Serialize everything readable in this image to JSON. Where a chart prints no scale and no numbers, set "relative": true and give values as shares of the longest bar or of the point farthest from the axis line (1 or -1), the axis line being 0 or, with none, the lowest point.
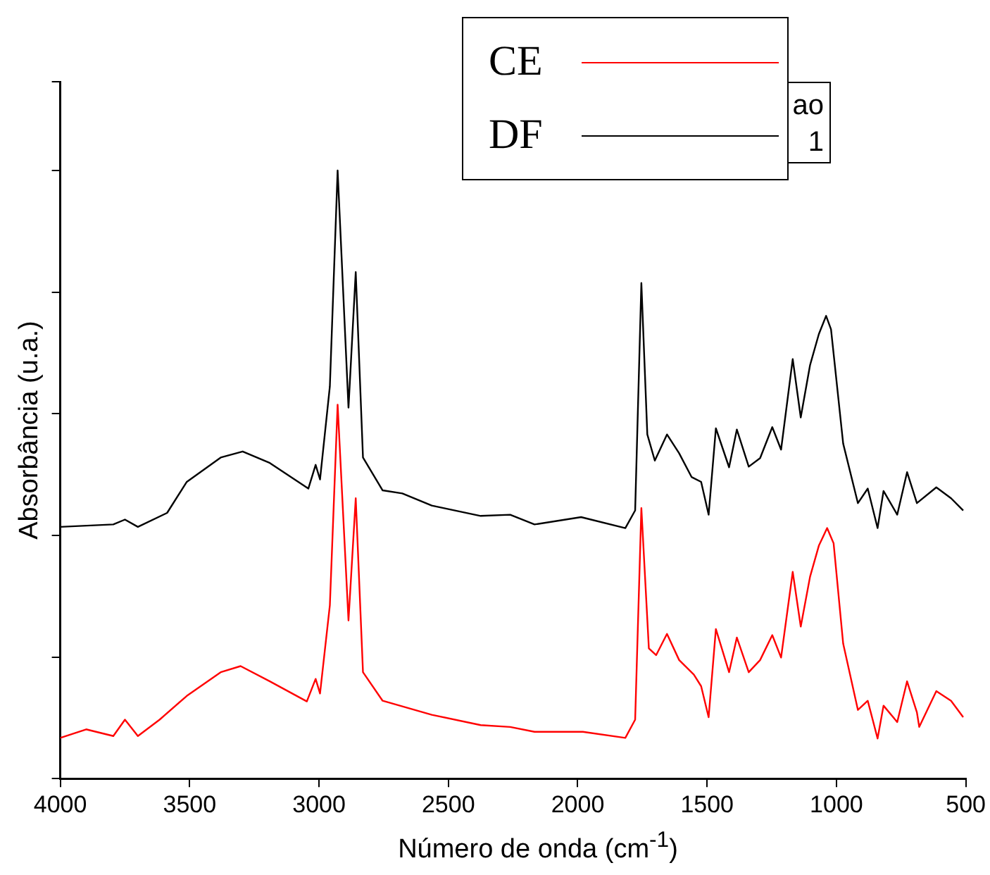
{
  "chart_data": {
    "type": "line",
    "xlabel": "Número de onda (cm$^{-1}$)",
    "ylabel": "Absorbância (u.a.)",
    "relative": true,
    "xlim": [
      4000,
      500
    ],
    "xticks": [
      4000,
      3500,
      3000,
      2500,
      2000,
      1500,
      1000,
      500
    ],
    "legend": "top right",
    "grid": false,
    "marker": "none",
    "line_style": "solid",
    "annotations": [
      "ao",
      "1"
    ],
    "series": [
      {
        "name": "CE",
        "color": "#ff0000",
        "x": [
          4000,
          3900,
          3795,
          3750,
          3700,
          3616,
          3511,
          3380,
          3303,
          3190,
          3047,
          3013,
          2996,
          2958,
          2928,
          2886,
          2858,
          2830,
          2754,
          2564,
          2375,
          2261,
          2167,
          1980,
          1816,
          1778,
          1754,
          1725,
          1697,
          1655,
          1608,
          1551,
          1523,
          1494,
          1466,
          1415,
          1385,
          1339,
          1295,
          1248,
          1214,
          1169,
          1138,
          1102,
          1068,
          1036,
          1011,
          974,
          917,
          879,
          841,
          818,
          765,
          727,
          689,
          680,
          614,
          557,
          510
        ],
        "values": [
          0.067,
          0.081,
          0.07,
          0.097,
          0.07,
          0.097,
          0.136,
          0.175,
          0.185,
          0.16,
          0.127,
          0.164,
          0.14,
          0.285,
          0.615,
          0.26,
          0.461,
          0.175,
          0.128,
          0.105,
          0.088,
          0.085,
          0.077,
          0.077,
          0.067,
          0.097,
          0.445,
          0.214,
          0.203,
          0.238,
          0.195,
          0.171,
          0.152,
          0.101,
          0.246,
          0.175,
          0.232,
          0.175,
          0.195,
          0.236,
          0.199,
          0.34,
          0.25,
          0.332,
          0.383,
          0.412,
          0.387,
          0.222,
          0.113,
          0.128,
          0.066,
          0.12,
          0.093,
          0.16,
          0.109,
          0.085,
          0.144,
          0.128,
          0.101
        ]
      },
      {
        "name": "DF",
        "color": "#000000",
        "x": [
          4000,
          3795,
          3750,
          3700,
          3587,
          3511,
          3380,
          3295,
          3190,
          3041,
          3013,
          2996,
          2958,
          2928,
          2886,
          2858,
          2830,
          2754,
          2678,
          2564,
          2375,
          2261,
          2167,
          1987,
          1816,
          1778,
          1754,
          1731,
          1702,
          1655,
          1608,
          1560,
          1523,
          1494,
          1466,
          1415,
          1385,
          1339,
          1295,
          1248,
          1214,
          1169,
          1138,
          1102,
          1068,
          1040,
          1021,
          974,
          917,
          879,
          841,
          818,
          765,
          727,
          689,
          614,
          557,
          510
        ],
        "values": [
          0.414,
          0.418,
          0.426,
          0.414,
          0.437,
          0.488,
          0.528,
          0.538,
          0.519,
          0.477,
          0.516,
          0.492,
          0.645,
          1.0,
          0.61,
          0.833,
          0.528,
          0.474,
          0.469,
          0.449,
          0.432,
          0.434,
          0.418,
          0.43,
          0.412,
          0.441,
          0.815,
          0.566,
          0.523,
          0.566,
          0.535,
          0.496,
          0.488,
          0.434,
          0.576,
          0.512,
          0.574,
          0.513,
          0.527,
          0.578,
          0.541,
          0.69,
          0.594,
          0.68,
          0.731,
          0.761,
          0.739,
          0.551,
          0.453,
          0.477,
          0.412,
          0.473,
          0.434,
          0.504,
          0.453,
          0.479,
          0.461,
          0.441
        ]
      }
    ]
  }
}
